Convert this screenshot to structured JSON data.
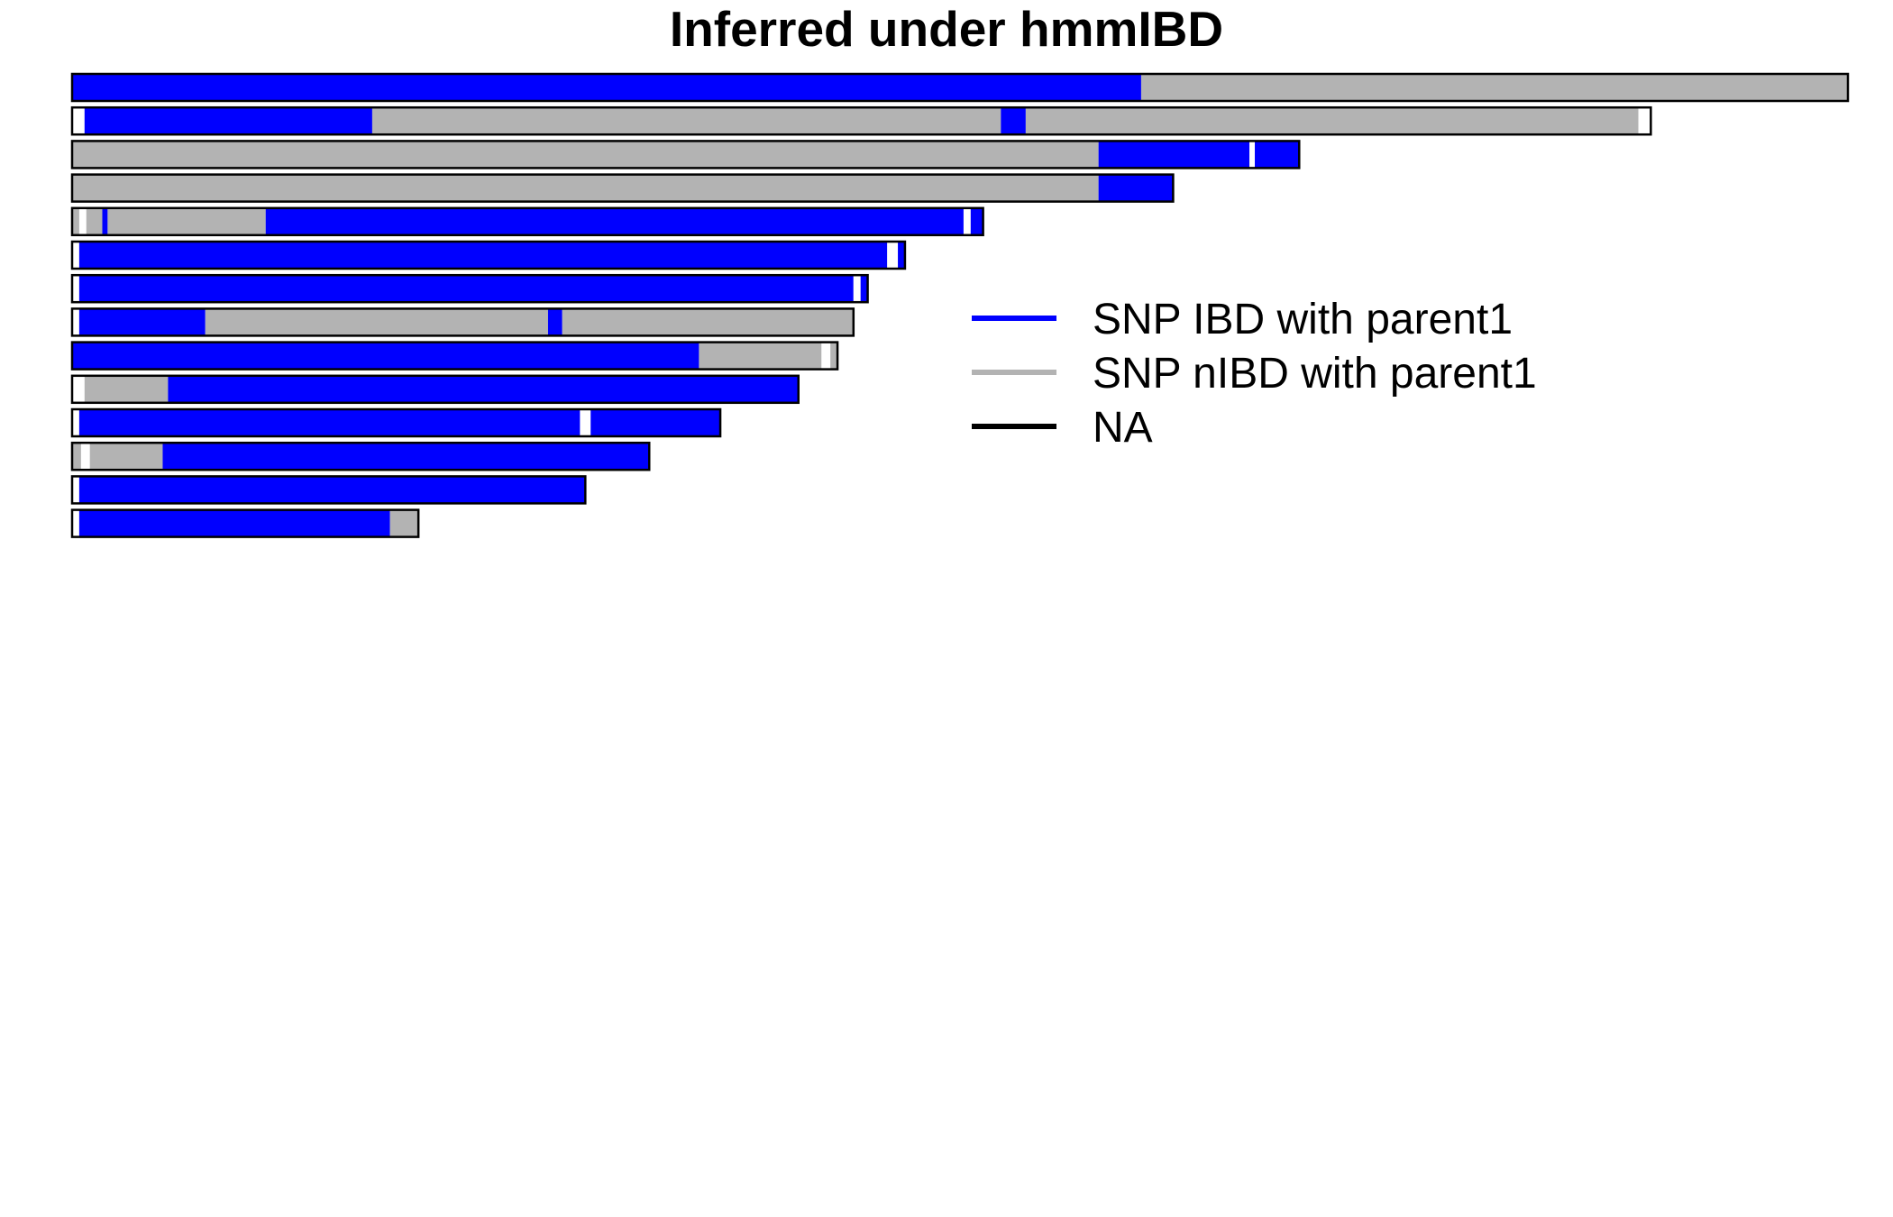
{
  "colors": {
    "ibd": "#0000FF",
    "nibd": "#B3B3B3",
    "na": "#000000",
    "background": "#FFFFFF"
  },
  "chart_data": {
    "type": "chromosome-painting",
    "title": "Inferred under hmmIBD",
    "legend": {
      "position": "right",
      "entries": [
        {
          "label": "SNP IBD with parent1",
          "color": "#0000FF"
        },
        {
          "label": "SNP nIBD with parent1",
          "color": "#B3B3B3"
        },
        {
          "label": "NA",
          "color": "#000000"
        }
      ]
    },
    "units": "fraction of the longest chromosome",
    "chromosomes": [
      {
        "length": 1.0,
        "segments": [
          {
            "state": "IBD",
            "start": 0.0,
            "end": 0.602
          },
          {
            "state": "nIBD",
            "start": 0.602,
            "end": 1.0
          }
        ]
      },
      {
        "length": 0.889,
        "segments": [
          {
            "state": "NA",
            "start": 0.0,
            "end": 0.007
          },
          {
            "state": "IBD",
            "start": 0.007,
            "end": 0.169
          },
          {
            "state": "nIBD",
            "start": 0.169,
            "end": 0.523
          },
          {
            "state": "IBD",
            "start": 0.523,
            "end": 0.537
          },
          {
            "state": "nIBD",
            "start": 0.537,
            "end": 0.882
          },
          {
            "state": "NA",
            "start": 0.882,
            "end": 0.889
          }
        ]
      },
      {
        "length": 0.691,
        "segments": [
          {
            "state": "nIBD",
            "start": 0.0,
            "end": 0.578
          },
          {
            "state": "IBD",
            "start": 0.578,
            "end": 0.663
          },
          {
            "state": "NA",
            "start": 0.663,
            "end": 0.666
          },
          {
            "state": "IBD",
            "start": 0.666,
            "end": 0.691
          }
        ]
      },
      {
        "length": 0.62,
        "segments": [
          {
            "state": "nIBD",
            "start": 0.0,
            "end": 0.578
          },
          {
            "state": "IBD",
            "start": 0.578,
            "end": 0.62
          }
        ]
      },
      {
        "length": 0.513,
        "segments": [
          {
            "state": "nIBD",
            "start": 0.0,
            "end": 0.017
          },
          {
            "state": "NA",
            "start": 0.004,
            "end": 0.008
          },
          {
            "state": "IBD",
            "start": 0.017,
            "end": 0.02
          },
          {
            "state": "nIBD",
            "start": 0.02,
            "end": 0.109
          },
          {
            "state": "IBD",
            "start": 0.109,
            "end": 0.502
          },
          {
            "state": "NA",
            "start": 0.502,
            "end": 0.506
          },
          {
            "state": "IBD",
            "start": 0.506,
            "end": 0.513
          }
        ]
      },
      {
        "length": 0.469,
        "segments": [
          {
            "state": "NA",
            "start": 0.0,
            "end": 0.004
          },
          {
            "state": "IBD",
            "start": 0.004,
            "end": 0.459
          },
          {
            "state": "NA",
            "start": 0.459,
            "end": 0.465
          },
          {
            "state": "IBD",
            "start": 0.465,
            "end": 0.469
          }
        ]
      },
      {
        "length": 0.448,
        "segments": [
          {
            "state": "NA",
            "start": 0.0,
            "end": 0.004
          },
          {
            "state": "IBD",
            "start": 0.004,
            "end": 0.44
          },
          {
            "state": "NA",
            "start": 0.44,
            "end": 0.444
          },
          {
            "state": "IBD",
            "start": 0.444,
            "end": 0.448
          }
        ]
      },
      {
        "length": 0.44,
        "segments": [
          {
            "state": "NA",
            "start": 0.0,
            "end": 0.004
          },
          {
            "state": "IBD",
            "start": 0.004,
            "end": 0.075
          },
          {
            "state": "nIBD",
            "start": 0.075,
            "end": 0.268
          },
          {
            "state": "IBD",
            "start": 0.268,
            "end": 0.276
          },
          {
            "state": "nIBD",
            "start": 0.276,
            "end": 0.44
          }
        ]
      },
      {
        "length": 0.431,
        "segments": [
          {
            "state": "IBD",
            "start": 0.0,
            "end": 0.353
          },
          {
            "state": "nIBD",
            "start": 0.353,
            "end": 0.422
          },
          {
            "state": "NA",
            "start": 0.422,
            "end": 0.427
          },
          {
            "state": "nIBD",
            "start": 0.427,
            "end": 0.431
          }
        ]
      },
      {
        "length": 0.409,
        "segments": [
          {
            "state": "NA",
            "start": 0.0,
            "end": 0.007
          },
          {
            "state": "nIBD",
            "start": 0.007,
            "end": 0.054
          },
          {
            "state": "IBD",
            "start": 0.054,
            "end": 0.409
          }
        ]
      },
      {
        "length": 0.365,
        "segments": [
          {
            "state": "NA",
            "start": 0.0,
            "end": 0.004
          },
          {
            "state": "IBD",
            "start": 0.004,
            "end": 0.286
          },
          {
            "state": "NA",
            "start": 0.286,
            "end": 0.292
          },
          {
            "state": "IBD",
            "start": 0.292,
            "end": 0.365
          }
        ]
      },
      {
        "length": 0.325,
        "segments": [
          {
            "state": "nIBD",
            "start": 0.0,
            "end": 0.051
          },
          {
            "state": "NA",
            "start": 0.005,
            "end": 0.01
          },
          {
            "state": "IBD",
            "start": 0.051,
            "end": 0.325
          }
        ]
      },
      {
        "length": 0.289,
        "segments": [
          {
            "state": "NA",
            "start": 0.0,
            "end": 0.004
          },
          {
            "state": "IBD",
            "start": 0.004,
            "end": 0.289
          }
        ]
      },
      {
        "length": 0.195,
        "segments": [
          {
            "state": "NA",
            "start": 0.0,
            "end": 0.004
          },
          {
            "state": "IBD",
            "start": 0.004,
            "end": 0.179
          },
          {
            "state": "nIBD",
            "start": 0.179,
            "end": 0.195
          }
        ]
      }
    ]
  }
}
